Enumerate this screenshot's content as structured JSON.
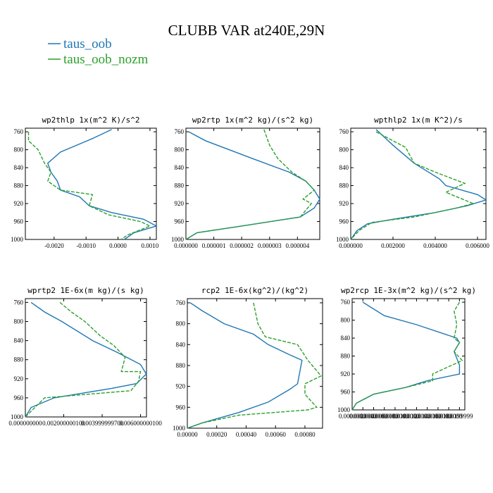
{
  "title": "CLUBB VAR at240E,29N",
  "colors": {
    "taus_oob": "#1f77b4",
    "taus_oob_nozm": "#2ca02c"
  },
  "legend": [
    {
      "name": "taus_oob",
      "color": "#1f77b4",
      "dash": "solid"
    },
    {
      "name": "taus_oob_nozm",
      "color": "#2ca02c",
      "dash": "dashed"
    }
  ],
  "chart_data": [
    {
      "type": "line",
      "title": "wp2thlp  1x(m^2 K)/s^2",
      "xlim": [
        -0.0029,
        0.0012
      ],
      "ylim": [
        1000,
        752
      ],
      "xticks": [
        -0.002,
        -0.001,
        0.0,
        0.001
      ],
      "xtick_labels": [
        "-0.0020",
        "-0.0010",
        "0.0000",
        "0.0010"
      ],
      "yticks": [
        760,
        800,
        840,
        880,
        920,
        960,
        1000
      ],
      "ytick_labels": [
        "760",
        "800",
        "840",
        "880",
        "920",
        "960",
        "1000"
      ],
      "series": [
        {
          "name": "taus_oob",
          "points": [
            [
              -0.0002,
              755
            ],
            [
              -0.0008,
              775
            ],
            [
              -0.0018,
              805
            ],
            [
              -0.0022,
              830
            ],
            [
              -0.0021,
              850
            ],
            [
              -0.0019,
              870
            ],
            [
              -0.0018,
              890
            ],
            [
              -0.0012,
              905
            ],
            [
              -0.0009,
              925
            ],
            [
              -0.0002,
              940
            ],
            [
              0.0008,
              955
            ],
            [
              0.0012,
              970
            ],
            [
              0.0005,
              985
            ],
            [
              0.0002,
              1000
            ]
          ]
        },
        {
          "name": "taus_oob_nozm",
          "points": [
            [
              -0.0028,
              760
            ],
            [
              -0.0028,
              780
            ],
            [
              -0.0025,
              800
            ],
            [
              -0.0023,
              830
            ],
            [
              -0.0021,
              850
            ],
            [
              -0.0022,
              870
            ],
            [
              -0.0018,
              890
            ],
            [
              -0.0008,
              900
            ],
            [
              -0.0009,
              925
            ],
            [
              -0.0003,
              945
            ],
            [
              0.0007,
              960
            ],
            [
              0.001,
              970
            ],
            [
              0.0003,
              990
            ],
            [
              0.0001,
              1000
            ]
          ]
        }
      ]
    },
    {
      "type": "line",
      "title": "wp2rtp  1x(m^2 kg)/(s^2 kg)",
      "xlim": [
        0.0,
        4.8e-06
      ],
      "ylim": [
        1000,
        752
      ],
      "xticks": [
        0.0,
        1e-06,
        2e-06,
        3e-06,
        4e-06
      ],
      "xtick_labels": [
        "0.000000",
        "0.000001",
        "0.000002",
        "0.000003",
        "0.000004"
      ],
      "yticks": [
        760,
        800,
        840,
        880,
        920,
        960,
        1000
      ],
      "ytick_labels": [
        "760",
        "800",
        "840",
        "880",
        "920",
        "960",
        "1000"
      ],
      "series": [
        {
          "name": "taus_oob",
          "points": [
            [
              1e-07,
              760
            ],
            [
              7e-07,
              780
            ],
            [
              2.4e-06,
              820
            ],
            [
              3.7e-06,
              850
            ],
            [
              4.3e-06,
              870
            ],
            [
              4.6e-06,
              890
            ],
            [
              4.8e-06,
              910
            ],
            [
              4.6e-06,
              930
            ],
            [
              4.1e-06,
              950
            ],
            [
              2e-06,
              970
            ],
            [
              4e-07,
              985
            ],
            [
              0.0,
              1000
            ]
          ]
        },
        {
          "name": "taus_oob_nozm",
          "points": [
            [
              2.8e-06,
              755
            ],
            [
              3e-06,
              790
            ],
            [
              3.3e-06,
              820
            ],
            [
              3.8e-06,
              850
            ],
            [
              4.3e-06,
              870
            ],
            [
              4.6e-06,
              890
            ],
            [
              4.2e-06,
              910
            ],
            [
              4.5e-06,
              920
            ],
            [
              4.1e-06,
              950
            ],
            [
              2e-06,
              970
            ],
            [
              4e-07,
              985
            ],
            [
              0.0,
              1000
            ]
          ]
        }
      ]
    },
    {
      "type": "line",
      "title": "wpthlp2  1x(m K^2)/s",
      "xlim": [
        0.0,
        0.0064
      ],
      "ylim": [
        1000,
        752
      ],
      "xticks": [
        0.0,
        0.002,
        0.004,
        0.006
      ],
      "xtick_labels": [
        "0.000000",
        "0.002000",
        "0.004000",
        "0.006000"
      ],
      "yticks": [
        760,
        800,
        840,
        880,
        920,
        960,
        1000
      ],
      "ytick_labels": [
        "760",
        "800",
        "840",
        "880",
        "920",
        "960",
        "1000"
      ],
      "series": [
        {
          "name": "taus_oob",
          "points": [
            [
              0.0012,
              755
            ],
            [
              0.002,
              790
            ],
            [
              0.003,
              830
            ],
            [
              0.0042,
              865
            ],
            [
              0.0045,
              880
            ],
            [
              0.006,
              900
            ],
            [
              0.0064,
              912
            ],
            [
              0.0055,
              925
            ],
            [
              0.004,
              940
            ],
            [
              0.002,
              955
            ],
            [
              0.0008,
              965
            ],
            [
              0.0003,
              980
            ],
            [
              0.0,
              1000
            ]
          ]
        },
        {
          "name": "taus_oob_nozm",
          "points": [
            [
              0.0012,
              760
            ],
            [
              0.0026,
              795
            ],
            [
              0.003,
              830
            ],
            [
              0.004,
              850
            ],
            [
              0.0054,
              875
            ],
            [
              0.0045,
              895
            ],
            [
              0.0058,
              920
            ],
            [
              0.005,
              930
            ],
            [
              0.003,
              950
            ],
            [
              0.001,
              962
            ],
            [
              0.0004,
              980
            ],
            [
              0.0,
              1000
            ]
          ]
        }
      ]
    },
    {
      "type": "line",
      "title": "wprtp2  1E-6x(m kg)/(s kg)",
      "xlim": [
        0.0,
        0.00631
      ],
      "ylim": [
        1000,
        752
      ],
      "xticks": [
        0.0,
        0.002,
        0.004,
        0.006
      ],
      "xtick_labels": [
        "0.000000000",
        "0.002000000100",
        "0.003999999700",
        "0.006000000100"
      ],
      "yticks": [
        760,
        800,
        840,
        880,
        920,
        960,
        1000
      ],
      "ytick_labels": [
        "760",
        "800",
        "840",
        "880",
        "920",
        "960",
        "1000"
      ],
      "series": [
        {
          "name": "taus_oob",
          "points": [
            [
              0.0003,
              760
            ],
            [
              0.001,
              780
            ],
            [
              0.0019,
              800
            ],
            [
              0.0035,
              840
            ],
            [
              0.0048,
              865
            ],
            [
              0.006,
              890
            ],
            [
              0.0063,
              910
            ],
            [
              0.0058,
              930
            ],
            [
              0.0045,
              940
            ],
            [
              0.0015,
              960
            ],
            [
              0.0003,
              980
            ],
            [
              0.0,
              1000
            ]
          ]
        },
        {
          "name": "taus_oob_nozm",
          "points": [
            [
              0.0018,
              760
            ],
            [
              0.0024,
              780
            ],
            [
              0.0031,
              800
            ],
            [
              0.0039,
              830
            ],
            [
              0.0046,
              850
            ],
            [
              0.0052,
              875
            ],
            [
              0.005,
              905
            ],
            [
              0.006,
              905
            ],
            [
              0.0059,
              925
            ],
            [
              0.0055,
              945
            ],
            [
              0.001,
              960
            ],
            [
              0.0,
              1000
            ]
          ]
        }
      ]
    },
    {
      "type": "line",
      "title": "rcp2  1E-6x(kg^2)/(kg^2)",
      "xlim": [
        0.0,
        0.00092
      ],
      "ylim": [
        1000,
        752
      ],
      "xticks": [
        0.0,
        0.0002,
        0.0004,
        0.0006,
        0.0008
      ],
      "xtick_labels": [
        "0.00000",
        "0.00020",
        "0.00040",
        "0.00060",
        "0.00080"
      ],
      "yticks": [
        760,
        800,
        840,
        880,
        920,
        960,
        1000
      ],
      "ytick_labels": [
        "760",
        "800",
        "840",
        "880",
        "920",
        "960",
        "1000"
      ],
      "series": [
        {
          "name": "taus_oob",
          "points": [
            [
              2e-05,
              760
            ],
            [
              0.0001,
              775
            ],
            [
              0.00025,
              800
            ],
            [
              0.00045,
              820
            ],
            [
              0.00055,
              840
            ],
            [
              0.0007,
              860
            ],
            [
              0.00078,
              870
            ],
            [
              0.00075,
              915
            ],
            [
              0.0007,
              925
            ],
            [
              0.00055,
              950
            ],
            [
              0.00035,
              970
            ],
            [
              0.0001,
              990
            ],
            [
              0.0,
              1000
            ]
          ]
        },
        {
          "name": "taus_oob_nozm",
          "points": [
            [
              0.00045,
              760
            ],
            [
              0.00048,
              800
            ],
            [
              0.00053,
              825
            ],
            [
              0.00075,
              840
            ],
            [
              0.00082,
              870
            ],
            [
              0.00091,
              900
            ],
            [
              0.0008,
              915
            ],
            [
              0.0008,
              935
            ],
            [
              0.00088,
              960
            ],
            [
              0.00082,
              965
            ],
            [
              0.00035,
              975
            ],
            [
              0.0001,
              990
            ],
            [
              0.0,
              1000
            ]
          ]
        }
      ]
    },
    {
      "type": "line",
      "title": "wp2rcp  1E-3x(m^2 kg)/(s^2 kg)",
      "xlim": [
        0.0,
        0.021
      ],
      "ylim": [
        1000,
        752
      ],
      "xticks": [
        0.0,
        0.002,
        0.004,
        0.006,
        0.008,
        0.01,
        0.012,
        0.014,
        0.016,
        0.018,
        0.02
      ],
      "xtick_labels": [
        "0.0000000",
        "0.0020000",
        "0.0040000",
        "0.0060000",
        "0.0080000",
        "0.0100000",
        "0.0120000",
        "0.0140000",
        "0.0160000",
        "0.0180000",
        "0.0199999"
      ],
      "yticks": [
        760,
        800,
        840,
        880,
        920,
        960,
        1000
      ],
      "ytick_labels": [
        "760",
        "800",
        "840",
        "880",
        "920",
        "960",
        "1000"
      ],
      "series": [
        {
          "name": "taus_oob",
          "points": [
            [
              0.002,
              760
            ],
            [
              0.006,
              790
            ],
            [
              0.012,
              810
            ],
            [
              0.0195,
              840
            ],
            [
              0.02,
              850
            ],
            [
              0.019,
              870
            ],
            [
              0.02,
              900
            ],
            [
              0.02,
              920
            ],
            [
              0.014,
              935
            ],
            [
              0.01,
              950
            ],
            [
              0.004,
              965
            ],
            [
              0.0008,
              985
            ],
            [
              0.0,
              1000
            ]
          ]
        },
        {
          "name": "taus_oob_nozm",
          "points": [
            [
              0.02,
              760
            ],
            [
              0.019,
              780
            ],
            [
              0.0195,
              810
            ],
            [
              0.019,
              840
            ],
            [
              0.02,
              850
            ],
            [
              0.019,
              870
            ],
            [
              0.0205,
              890
            ],
            [
              0.015,
              920
            ],
            [
              0.015,
              935
            ],
            [
              0.01,
              950
            ],
            [
              0.004,
              965
            ],
            [
              0.0008,
              985
            ],
            [
              0.0,
              1000
            ]
          ]
        }
      ]
    }
  ]
}
